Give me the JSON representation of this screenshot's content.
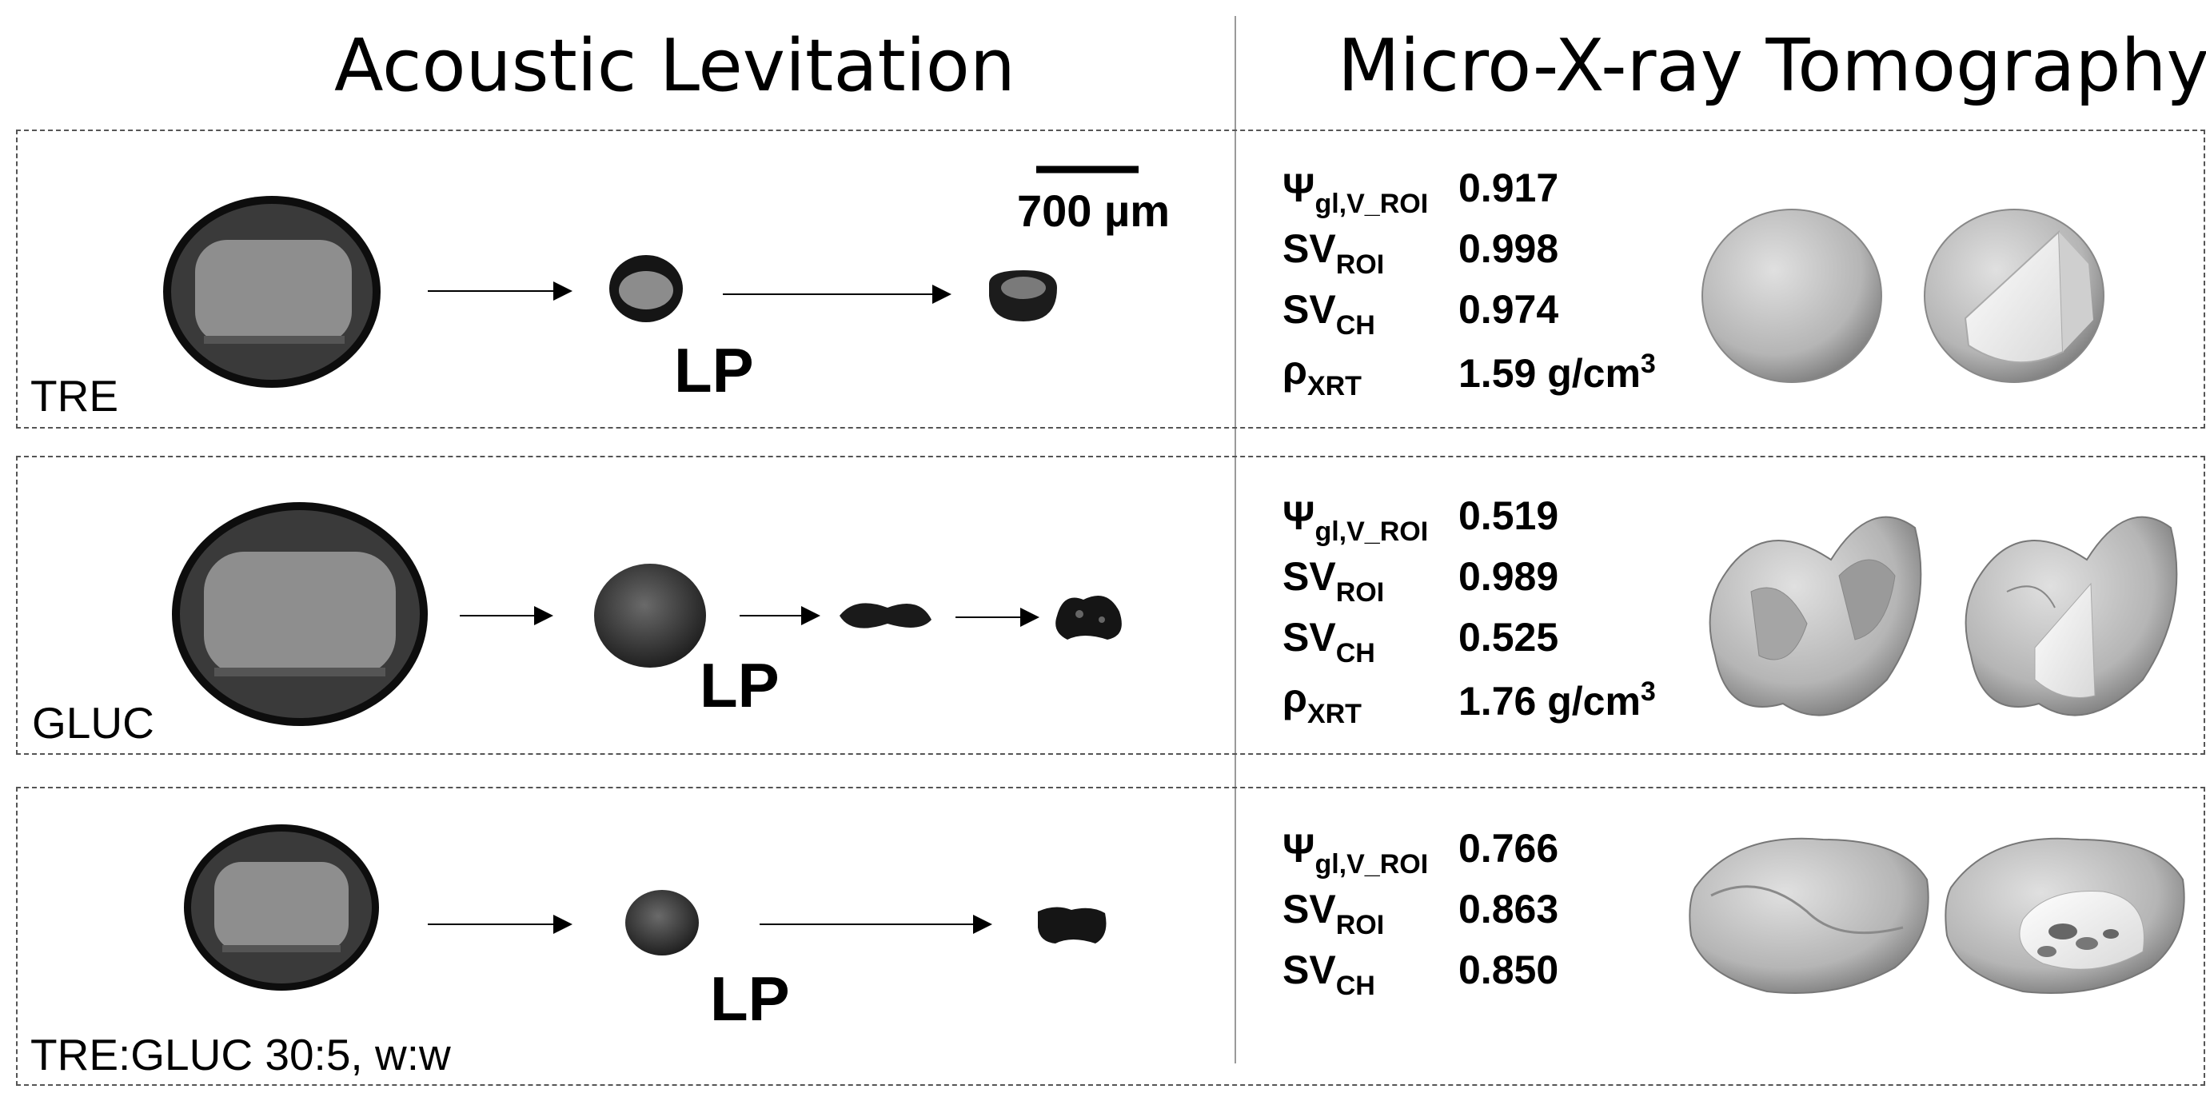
{
  "headers": {
    "left": "Acoustic Levitation",
    "right": "Micro-X-ray Tomography"
  },
  "scale_bar": {
    "label": "700 µm"
  },
  "rows": [
    {
      "label": "TRE",
      "stage_label": "LP",
      "metrics": [
        {
          "symbol": "Ψ",
          "sub": "gl,V_ROI",
          "value": "0.917"
        },
        {
          "symbol": "SV",
          "sub": "ROI",
          "value": "0.998"
        },
        {
          "symbol": "SV",
          "sub": "CH",
          "value": "0.974"
        },
        {
          "symbol": "ρ",
          "sub": "XRT",
          "value": "1.59 g/cm",
          "sup": "3"
        }
      ]
    },
    {
      "label": "GLUC",
      "stage_label": "LP",
      "metrics": [
        {
          "symbol": "Ψ",
          "sub": "gl,V_ROI",
          "value": "0.519"
        },
        {
          "symbol": "SV",
          "sub": "ROI",
          "value": "0.989"
        },
        {
          "symbol": "SV",
          "sub": "CH",
          "value": "0.525"
        },
        {
          "symbol": "ρ",
          "sub": "XRT",
          "value": "1.76 g/cm",
          "sup": "3"
        }
      ]
    },
    {
      "label": "TRE:GLUC 30:5, w:w",
      "stage_label": "LP",
      "metrics": [
        {
          "symbol": "Ψ",
          "sub": "gl,V_ROI",
          "value": "0.766"
        },
        {
          "symbol": "SV",
          "sub": "ROI",
          "value": "0.863"
        },
        {
          "symbol": "SV",
          "sub": "CH",
          "value": "0.850"
        }
      ]
    }
  ]
}
